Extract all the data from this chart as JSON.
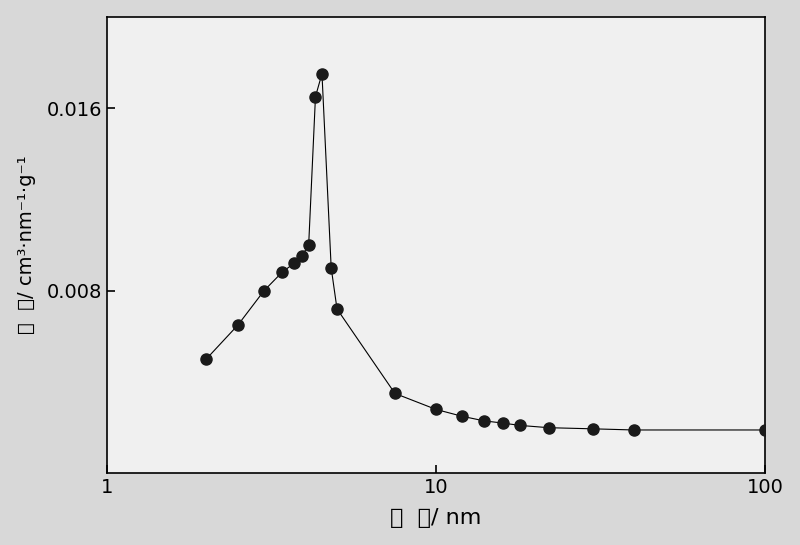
{
  "x": [
    2.0,
    2.5,
    3.0,
    3.4,
    3.7,
    3.9,
    4.1,
    4.3,
    4.5,
    4.8,
    5.0,
    7.5,
    10.0,
    12.0,
    14.0,
    16.0,
    18.0,
    22.0,
    30.0,
    40.0,
    100.0
  ],
  "y": [
    0.005,
    0.0065,
    0.008,
    0.0088,
    0.0092,
    0.0095,
    0.01,
    0.0165,
    0.0175,
    0.009,
    0.0072,
    0.0035,
    0.0028,
    0.0025,
    0.0023,
    0.0022,
    0.0021,
    0.002,
    0.00195,
    0.0019,
    0.0019
  ],
  "xlabel": "孔  径/ nm",
  "ylabel_chinese": "孔  容/ cm",
  "ylabel_suffix": "³·nm",
  "ylabel_exp": "-1",
  "ylabel_suffix2": "·g",
  "ylabel_exp2": "-1",
  "xlim": [
    1,
    100
  ],
  "ylim": [
    0.0,
    0.02
  ],
  "yticks": [
    0.008,
    0.016
  ],
  "xticks": [
    1,
    10,
    100
  ],
  "line_color": "#000000",
  "marker_color": "#1a1a1a",
  "marker_size": 8,
  "linewidth": 0.8,
  "background_color": "#d8d8d8",
  "plot_bg_color": "#f0f0f0",
  "xlabel_fontsize": 16,
  "ylabel_fontsize": 14,
  "tick_fontsize": 14
}
